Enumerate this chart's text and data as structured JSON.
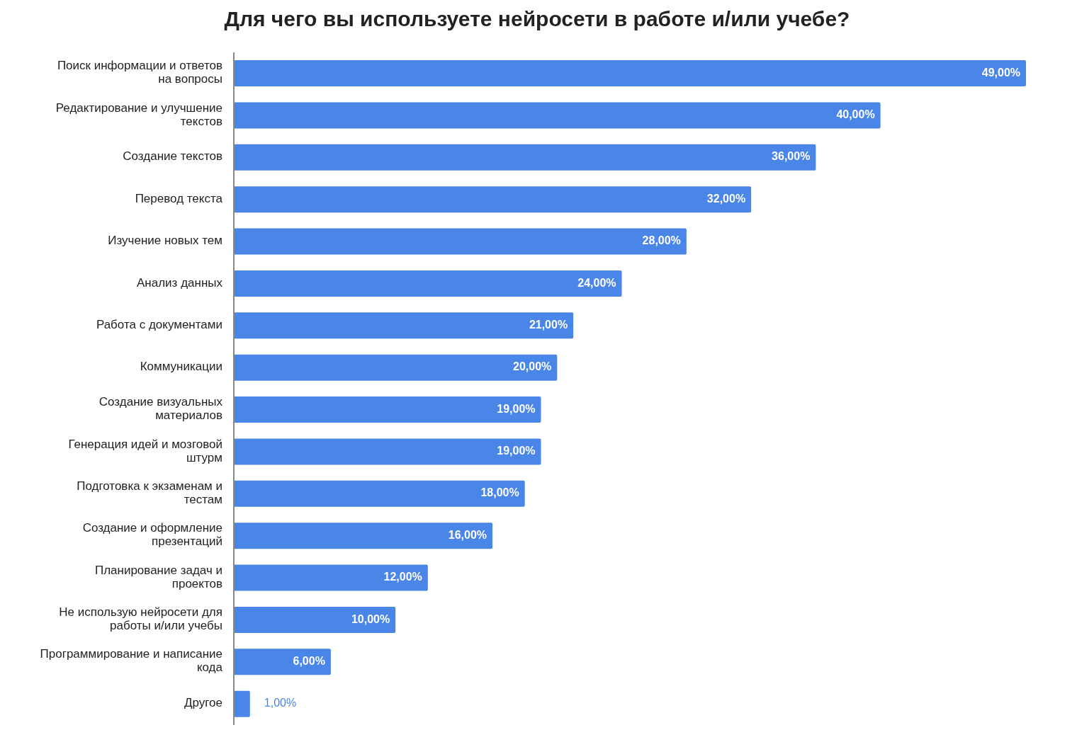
{
  "chart_data": {
    "type": "bar",
    "orientation": "horizontal",
    "title": "Для чего вы используете нейросети в работе и/или учебе?",
    "categories": [
      "Поиск информации и ответов на вопросы",
      "Редактирование и улучшение текстов",
      "Создание текстов",
      "Перевод текста",
      "Изучение новых тем",
      "Анализ данных",
      "Работа с документами",
      "Коммуникации",
      "Создание визуальных материалов",
      "Генерация идей и мозговой штурм",
      "Подготовка к экзаменам и тестам",
      "Создание и оформление презентаций",
      "Планирование задач и проектов",
      "Не использую нейросети для работы и/или учебы",
      "Программирование и написание кода",
      "Другое"
    ],
    "values": [
      49,
      40,
      36,
      32,
      28,
      24,
      21,
      20,
      19,
      19,
      18,
      16,
      12,
      10,
      6,
      1
    ],
    "value_labels": [
      "49,00%",
      "40,00%",
      "36,00%",
      "32,00%",
      "28,00%",
      "24,00%",
      "21,00%",
      "20,00%",
      "19,00%",
      "19,00%",
      "18,00%",
      "16,00%",
      "12,00%",
      "10,00%",
      "6,00%",
      "1,00%"
    ],
    "color": "#4a86e8",
    "grid": false,
    "legend": false
  }
}
